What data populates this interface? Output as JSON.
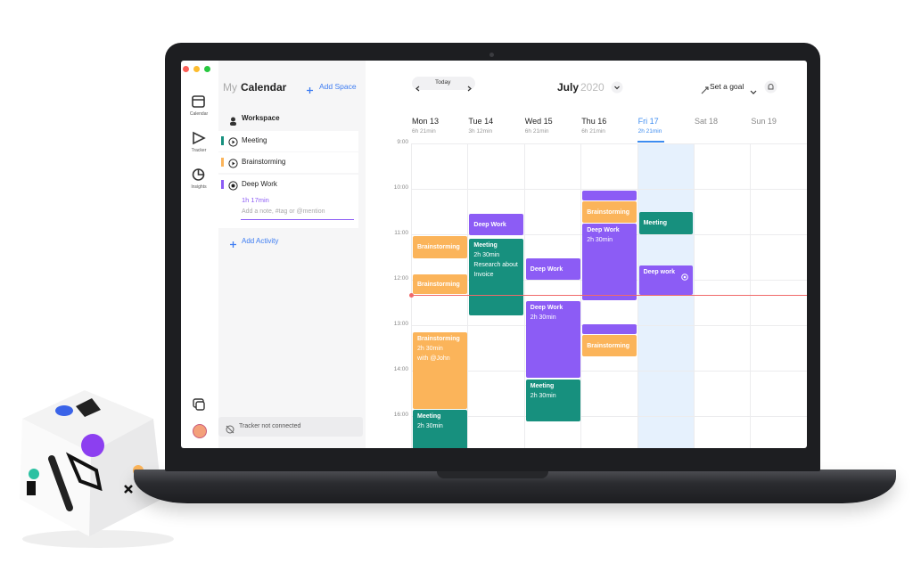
{
  "sidebar": [
    {
      "label": "Calendar"
    },
    {
      "label": "Tracker"
    },
    {
      "label": "Insights"
    }
  ],
  "panel": {
    "title_prefix": "My",
    "title": "Calendar",
    "add_space": "Add Space",
    "workspace": "Workspace",
    "activities": [
      {
        "name": "Meeting",
        "color": "#17907e"
      },
      {
        "name": "Brainstorming",
        "color": "#fbb45a"
      },
      {
        "name": "Deep Work",
        "color": "#8c5cf5",
        "duration": "1h 17min",
        "note_placeholder": "Add a note, #tag or @mention"
      }
    ],
    "add_activity": "Add Activity",
    "tracker_status": "Tracker not connected"
  },
  "header": {
    "today": "Today",
    "month": "July",
    "year": "2020",
    "goal": "Set a goal"
  },
  "times": [
    "9:00",
    "10:00",
    "11:00",
    "12:00",
    "13:00",
    "14:00",
    "16:00"
  ],
  "days": [
    {
      "name": "Mon 13",
      "total": "6h 21min",
      "events": [
        {
          "title": "Brainstorming",
          "color": "#fbb45a"
        },
        {
          "title": "Brainstorming",
          "color": "#fbb45a"
        },
        {
          "title": "Brainstorming",
          "details": [
            "2h 30min",
            "with @John"
          ],
          "color": "#fbb45a"
        },
        {
          "title": "Meeting",
          "details": [
            "2h 30min"
          ],
          "color": "#17907e"
        }
      ]
    },
    {
      "name": "Tue 14",
      "total": "3h 12min",
      "events": [
        {
          "title": "Deep Work",
          "color": "#8c5cf5"
        },
        {
          "title": "Meeting",
          "details": [
            "2h 30min",
            "Research about Invoice"
          ],
          "color": "#17907e"
        }
      ]
    },
    {
      "name": "Wed 15",
      "total": "6h 21min",
      "events": [
        {
          "title": "Deep Work",
          "color": "#8c5cf5"
        },
        {
          "title": "Deep Work",
          "details": [
            "2h 30min"
          ],
          "color": "#8c5cf5"
        },
        {
          "title": "Meeting",
          "details": [
            "2h 30min"
          ],
          "color": "#17907e"
        }
      ]
    },
    {
      "name": "Thu 16",
      "total": "6h 21min",
      "events": [
        {
          "color": "#8c5cf5"
        },
        {
          "title": "Brainstorming",
          "color": "#fbb45a"
        },
        {
          "title": "Deep Work",
          "details": [
            "2h 30min"
          ],
          "color": "#8c5cf5"
        },
        {
          "color": "#8c5cf5"
        },
        {
          "title": "Brainstorming",
          "color": "#fbb45a"
        }
      ]
    },
    {
      "name": "Fri 17",
      "total": "2h 21min",
      "current": true,
      "events": [
        {
          "title": "Meeting",
          "color": "#17907e"
        },
        {
          "title": "Deep work",
          "color": "#8c5cf5"
        }
      ]
    },
    {
      "name": "Sat 18",
      "events": []
    },
    {
      "name": "Sun 19",
      "events": []
    }
  ]
}
